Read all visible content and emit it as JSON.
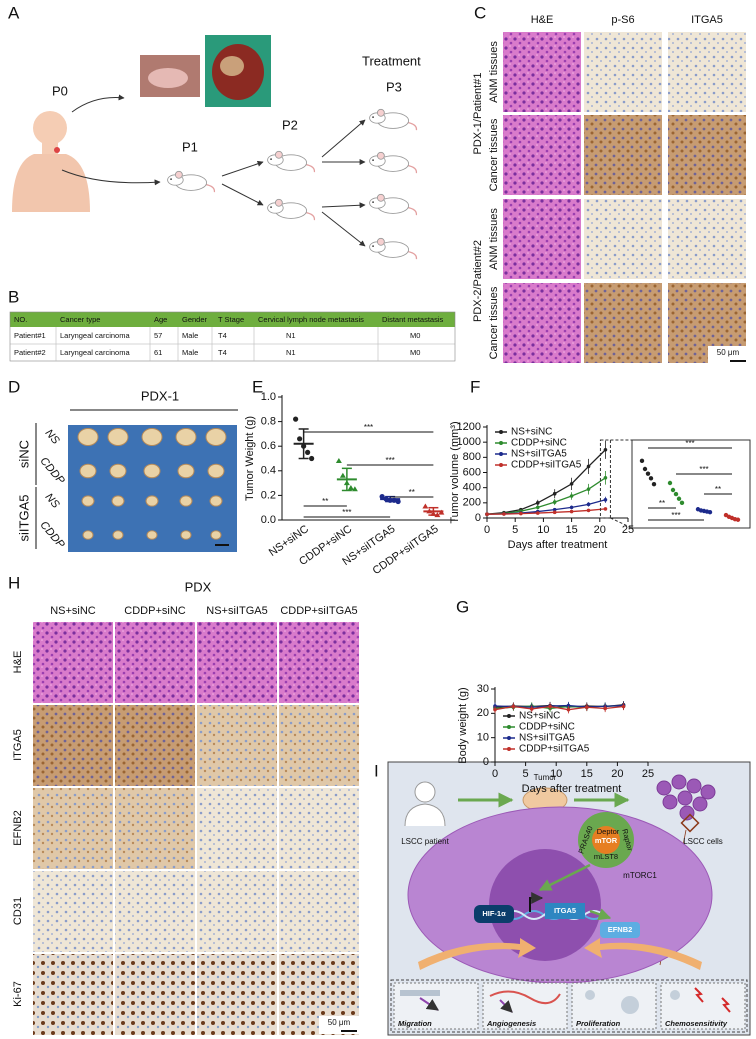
{
  "panel_labels": [
    "A",
    "B",
    "C",
    "D",
    "E",
    "F",
    "G",
    "H",
    "I"
  ],
  "panel_a": {
    "stages": [
      "P0",
      "P1",
      "P2",
      "P3"
    ],
    "treatment": "Treatment"
  },
  "table": {
    "header": [
      "NO.",
      "Cancer type",
      "Age",
      "Gender",
      "T Stage",
      "Cervical lymph node metastasis",
      "Distant metastasis"
    ],
    "rows": [
      [
        "Patient#1",
        "Laryngeal carcinoma",
        57,
        "Male",
        "T4",
        "N1",
        "M0"
      ],
      [
        "Patient#2",
        "Laryngeal carcinoma",
        61,
        "Male",
        "T4",
        "N1",
        "M0"
      ]
    ]
  },
  "panel_c": {
    "columns": [
      "H&E",
      "p-S6",
      "ITGA5"
    ],
    "groups": [
      {
        "name": "PDX-1/Patient#1",
        "rows": [
          "ANM tissues",
          "Cancer tissues"
        ]
      },
      {
        "name": "PDX-2/Patient#2",
        "rows": [
          "ANM tissues",
          "Cancer tissues"
        ]
      }
    ],
    "scale_bar": "50 μm"
  },
  "panel_d": {
    "title": "PDX-1",
    "groups": [
      {
        "name": "siNC",
        "treatments": [
          "NS",
          "CDDP"
        ]
      },
      {
        "name": "siITGA5",
        "treatments": [
          "NS",
          "CDDP"
        ]
      }
    ]
  },
  "panel_h": {
    "title": "PDX",
    "columns": [
      "NS+siNC",
      "CDDP+siNC",
      "NS+siITGA5",
      "CDDP+siITGA5"
    ],
    "rows": [
      "H&E",
      "ITGA5",
      "EFNB2",
      "CD31",
      "Ki-67"
    ],
    "scale_bar": "50 μm"
  },
  "panel_i": {
    "patient": "LSCC patient",
    "tumor": "Tumor",
    "cells": "LSCC cells",
    "complex": "mTORC1",
    "subunits": [
      "Deptor",
      "PRAS40",
      "mTOR",
      "Raptor",
      "mLST8"
    ],
    "hif": "HIF-1α",
    "gene": "ITGA5",
    "product": "EFNB2",
    "outcomes": [
      "Migration",
      "Angiogenesis",
      "Proliferation",
      "Chemosensitivity"
    ]
  },
  "chart_data": [
    {
      "type": "dotplot",
      "ylabel": "Tumor Weight (g)",
      "categories": [
        "NS+siNC",
        "CDDP+siNC",
        "NS+siITGA5",
        "CDDP+siITGA5"
      ],
      "colors": [
        "#222222",
        "#2e8b2e",
        "#1c2a8c",
        "#c0302a"
      ],
      "values": [
        0.62,
        0.33,
        0.17,
        0.07
      ],
      "errors": [
        0.12,
        0.09,
        0.02,
        0.03
      ],
      "points": [
        [
          0.82,
          0.66,
          0.6,
          0.55,
          0.5
        ],
        [
          0.48,
          0.36,
          0.3,
          0.26,
          0.25
        ],
        [
          0.19,
          0.17,
          0.16,
          0.16,
          0.15
        ],
        [
          0.11,
          0.07,
          0.05,
          0.04,
          0.06
        ]
      ],
      "ylim": [
        0,
        1
      ],
      "yticks": [
        {
          "value": 0,
          "label": "0.0"
        },
        0.2,
        0.4,
        0.6,
        0.8,
        {
          "value": 1,
          "label": "1.0"
        }
      ],
      "annotations": [
        "***",
        "***",
        "**",
        "**",
        "***"
      ]
    },
    {
      "type": "line",
      "xlabel": "Days after treatment",
      "ylabel": "Tumor volume (mm³)",
      "x": [
        0,
        3,
        6,
        9,
        12,
        15,
        18,
        21
      ],
      "series": [
        {
          "name": "NS+siNC",
          "color": "#222222",
          "values": [
            50,
            70,
            110,
            200,
            320,
            450,
            680,
            900
          ],
          "errors": [
            5,
            10,
            20,
            40,
            60,
            80,
            100,
            120
          ],
          "inset_points": [
            1100,
            960,
            880,
            800,
            700
          ]
        },
        {
          "name": "CDDP+siNC",
          "color": "#2e8b2e",
          "values": [
            50,
            60,
            90,
            140,
            210,
            290,
            380,
            530
          ],
          "errors": [
            5,
            10,
            15,
            25,
            40,
            50,
            70,
            90
          ],
          "inset_points": [
            720,
            600,
            530,
            450,
            380
          ]
        },
        {
          "name": "NS+siITGA5",
          "color": "#1c2a8c",
          "values": [
            50,
            55,
            65,
            85,
            110,
            140,
            180,
            240
          ],
          "errors": [
            5,
            5,
            10,
            15,
            20,
            25,
            30,
            40
          ],
          "inset_points": [
            270,
            250,
            240,
            230,
            220
          ]
        },
        {
          "name": "CDDP+siITGA5",
          "color": "#c0302a",
          "values": [
            50,
            52,
            58,
            65,
            75,
            85,
            100,
            120
          ],
          "errors": [
            5,
            5,
            5,
            10,
            10,
            15,
            15,
            20
          ],
          "inset_points": [
            170,
            140,
            120,
            100,
            90
          ]
        }
      ],
      "xlim": [
        0,
        25
      ],
      "xticks": [
        0,
        5,
        10,
        15,
        20,
        25
      ],
      "ylim": [
        0,
        1200
      ],
      "yticks": [
        0,
        200,
        400,
        600,
        800,
        1000,
        1200
      ],
      "legend": "upper left",
      "inset_annotations": [
        "***",
        "***",
        "**",
        "**",
        "***"
      ]
    },
    {
      "type": "line",
      "xlabel": "Days after treatment",
      "ylabel": "Body weight (g)",
      "x": [
        0,
        3,
        6,
        9,
        12,
        15,
        18,
        21
      ],
      "series": [
        {
          "name": "NS+siNC",
          "color": "#222222",
          "values": [
            22.5,
            23,
            22.8,
            23.2,
            22.6,
            23,
            22.8,
            23.5
          ],
          "errors": [
            1.5,
            1.5,
            1.5,
            1.5,
            1.5,
            1.5,
            1.5,
            1.5
          ]
        },
        {
          "name": "CDDP+siNC",
          "color": "#2e8b2e",
          "values": [
            22,
            22.5,
            23,
            22,
            22.8,
            22.4,
            23,
            23
          ],
          "errors": [
            1.5,
            1.5,
            1.5,
            1.5,
            1.5,
            1.5,
            1.5,
            1.5
          ]
        },
        {
          "name": "NS+siITGA5",
          "color": "#1c2a8c",
          "values": [
            23,
            22.8,
            22.5,
            23,
            23.2,
            22.6,
            22.9,
            23.2
          ],
          "errors": [
            1.5,
            1.5,
            1.5,
            1.5,
            1.5,
            1.5,
            1.5,
            1.5
          ]
        },
        {
          "name": "CDDP+siITGA5",
          "color": "#c0302a",
          "values": [
            21.5,
            22.8,
            21.8,
            22.8,
            21.5,
            22.5,
            22,
            22.8
          ],
          "errors": [
            1.5,
            1.5,
            1.5,
            1.5,
            1.5,
            1.5,
            1.5,
            1.5
          ]
        }
      ],
      "xlim": [
        0,
        25
      ],
      "xticks": [
        0,
        5,
        10,
        15,
        20,
        25
      ],
      "ylim": [
        0,
        30
      ],
      "yticks": [
        0,
        10,
        20,
        30
      ],
      "legend": "lower left"
    }
  ]
}
